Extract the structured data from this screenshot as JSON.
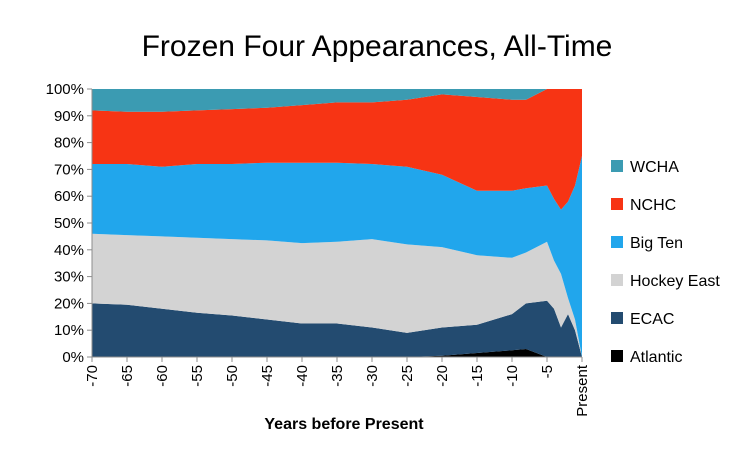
{
  "chart_data": {
    "type": "area",
    "stacked": "percent",
    "title": "Frozen Four Appearances, All-Time",
    "xlabel": "Years before Present",
    "ylabel": "",
    "x_tick_labels": [
      "-70",
      "-65",
      "-60",
      "-55",
      "-50",
      "-45",
      "-40",
      "-35",
      "-30",
      "-25",
      "-20",
      "-15",
      "-10",
      "-5",
      "Present"
    ],
    "y_tick_labels": [
      "0%",
      "10%",
      "20%",
      "30%",
      "40%",
      "50%",
      "60%",
      "70%",
      "80%",
      "90%",
      "100%"
    ],
    "ylim": [
      0,
      100
    ],
    "legend_position": "right",
    "x": [
      -70,
      -65,
      -60,
      -55,
      -50,
      -45,
      -40,
      -35,
      -30,
      -25,
      -20,
      -15,
      -10,
      -8,
      -5,
      -4,
      -3,
      -2,
      -1,
      0
    ],
    "series": [
      {
        "name": "Atlantic",
        "color": "#000000",
        "values": [
          0,
          0,
          0,
          0,
          0,
          0,
          0,
          0,
          0,
          0,
          0.5,
          1.5,
          2.5,
          3,
          0,
          0,
          0,
          0,
          0,
          0
        ]
      },
      {
        "name": "ECAC",
        "color": "#234b70",
        "values": [
          20,
          19.5,
          18,
          16.5,
          15.5,
          14,
          12.5,
          12.5,
          11,
          9,
          10.5,
          10.5,
          13.5,
          17,
          21,
          18,
          11,
          16,
          10,
          0
        ]
      },
      {
        "name": "Hockey East",
        "color": "#d3d3d3",
        "values": [
          26,
          26,
          27,
          28,
          28.5,
          29.5,
          30,
          30.5,
          33,
          33,
          30,
          26,
          21,
          19,
          22,
          18,
          20,
          6,
          4,
          0
        ]
      },
      {
        "name": "Big Ten",
        "color": "#21a6ec",
        "values": [
          26,
          26.5,
          26,
          27.5,
          28,
          29,
          30,
          29.5,
          28,
          29,
          27,
          24,
          25,
          24,
          21,
          23,
          24,
          36,
          50,
          75
        ]
      },
      {
        "name": "NCHC",
        "color": "#f73414",
        "values": [
          20,
          19.5,
          20.5,
          20,
          20.5,
          20.5,
          21.5,
          22.5,
          23,
          25,
          30,
          35,
          34,
          33,
          36,
          41,
          45,
          42,
          36,
          25
        ]
      },
      {
        "name": "WCHA",
        "color": "#3b9bb2",
        "values": [
          8,
          8.5,
          8.5,
          8,
          7.5,
          7,
          6,
          5,
          5,
          4,
          2,
          3,
          4,
          4,
          0,
          0,
          0,
          0,
          0,
          0
        ]
      }
    ]
  }
}
